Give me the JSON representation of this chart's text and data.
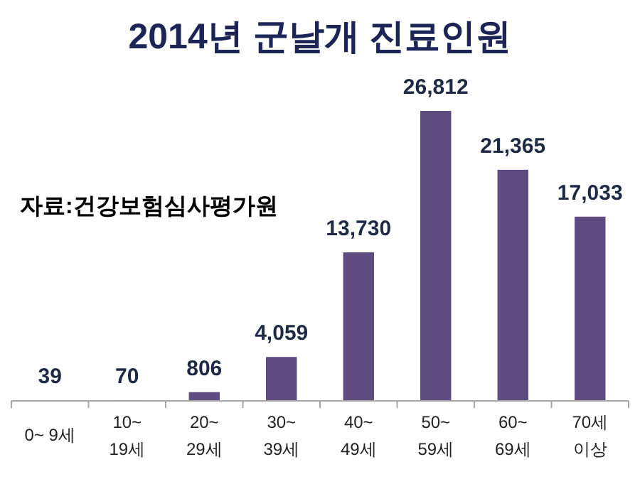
{
  "chart_data": {
    "type": "bar",
    "title": "2014년 군날개 진료인원",
    "categories": [
      "0~ 9세",
      "10~\n19세",
      "20~\n29세",
      "30~\n39세",
      "40~\n49세",
      "50~\n59세",
      "60~\n69세",
      "70세\n이상"
    ],
    "values": [
      39,
      70,
      806,
      4059,
      13730,
      26812,
      21365,
      17033
    ],
    "value_labels": [
      "39",
      "70",
      "806",
      "4,059",
      "13,730",
      "26,812",
      "21,365",
      "17,033"
    ],
    "color": "#5e4b80",
    "annotations": [
      "자료:건강보험심사평가원"
    ]
  }
}
